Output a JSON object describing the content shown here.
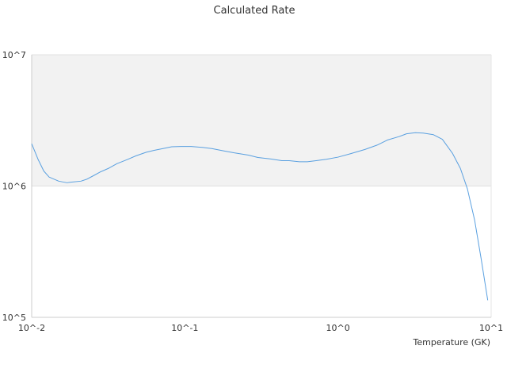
{
  "chart_data": {
    "type": "line",
    "title": "Calculated Rate",
    "xlabel": "Temperature (GK)",
    "ylabel": "",
    "xscale": "log",
    "yscale": "log",
    "xlim": [
      0.01,
      10
    ],
    "ylim": [
      100000,
      10000000
    ],
    "x_ticks": [
      {
        "value": 0.01,
        "label": "10^-2"
      },
      {
        "value": 0.1,
        "label": "10^-1"
      },
      {
        "value": 1,
        "label": "10^0"
      },
      {
        "value": 10,
        "label": "10^1"
      }
    ],
    "y_ticks": [
      {
        "value": 100000,
        "label": "10^5"
      },
      {
        "value": 1000000,
        "label": "10^6"
      },
      {
        "value": 10000000,
        "label": "10^7"
      }
    ],
    "grid": true,
    "band_color": "#f2f2f2",
    "line_color": "#5aa0e0",
    "series": [
      {
        "name": "",
        "x": [
          0.01,
          0.011,
          0.012,
          0.013,
          0.015,
          0.017,
          0.018,
          0.021,
          0.023,
          0.025,
          0.028,
          0.032,
          0.036,
          0.042,
          0.048,
          0.056,
          0.063,
          0.072,
          0.082,
          0.094,
          0.11,
          0.13,
          0.15,
          0.18,
          0.21,
          0.26,
          0.3,
          0.36,
          0.43,
          0.48,
          0.56,
          0.63,
          0.72,
          0.84,
          1.0,
          1.2,
          1.5,
          1.8,
          2.1,
          2.5,
          2.8,
          3.2,
          3.6,
          4.2,
          4.8,
          5.6,
          6.3,
          7.0,
          7.8,
          8.6,
          9.5
        ],
        "values": [
          2100000,
          1600000,
          1300000,
          1170000,
          1090000,
          1060000,
          1070000,
          1090000,
          1130000,
          1190000,
          1280000,
          1370000,
          1480000,
          1590000,
          1700000,
          1810000,
          1870000,
          1930000,
          1990000,
          2000000,
          2000000,
          1970000,
          1930000,
          1850000,
          1790000,
          1720000,
          1650000,
          1610000,
          1560000,
          1560000,
          1530000,
          1530000,
          1560000,
          1600000,
          1660000,
          1760000,
          1900000,
          2050000,
          2240000,
          2380000,
          2500000,
          2550000,
          2530000,
          2460000,
          2270000,
          1770000,
          1360000,
          950000,
          550000,
          280000,
          135000
        ]
      }
    ]
  }
}
